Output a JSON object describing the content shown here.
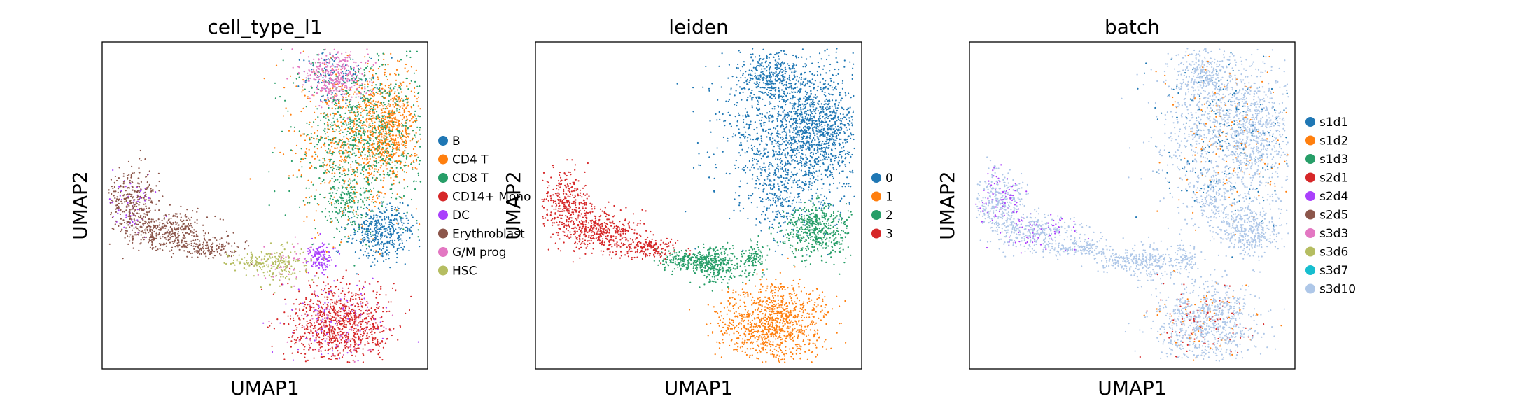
{
  "chart_data": [
    {
      "type": "scatter",
      "title": "cell_type_l1",
      "xlabel": "UMAP1",
      "ylabel": "UMAP2",
      "legend_placement": "right",
      "grid": false,
      "ticks": false,
      "series": [
        {
          "name": "B",
          "color": "#1f77b4"
        },
        {
          "name": "CD4 T",
          "color": "#ff7f0e"
        },
        {
          "name": "CD8 T",
          "color": "#279e68"
        },
        {
          "name": "CD14+ Mono",
          "color": "#d62728"
        },
        {
          "name": "DC",
          "color": "#aa40fc"
        },
        {
          "name": "Erythroblast",
          "color": "#8c564b"
        },
        {
          "name": "G/M prog",
          "color": "#e377c2"
        },
        {
          "name": "HSC",
          "color": "#b5bd61"
        }
      ]
    },
    {
      "type": "scatter",
      "title": "leiden",
      "xlabel": "UMAP1",
      "ylabel": "UMAP2",
      "legend_placement": "right",
      "grid": false,
      "ticks": false,
      "series": [
        {
          "name": "0",
          "color": "#1f77b4"
        },
        {
          "name": "1",
          "color": "#ff7f0e"
        },
        {
          "name": "2",
          "color": "#279e68"
        },
        {
          "name": "3",
          "color": "#d62728"
        }
      ]
    },
    {
      "type": "scatter",
      "title": "batch",
      "xlabel": "UMAP1",
      "ylabel": "UMAP2",
      "legend_placement": "right",
      "grid": false,
      "ticks": false,
      "series": [
        {
          "name": "s1d1",
          "color": "#1f77b4"
        },
        {
          "name": "s1d2",
          "color": "#ff7f0e"
        },
        {
          "name": "s1d3",
          "color": "#279e68"
        },
        {
          "name": "s2d1",
          "color": "#d62728"
        },
        {
          "name": "s2d4",
          "color": "#aa40fc"
        },
        {
          "name": "s2d5",
          "color": "#8c564b"
        },
        {
          "name": "s3d3",
          "color": "#e377c2"
        },
        {
          "name": "s3d6",
          "color": "#b5bd61"
        },
        {
          "name": "s3d7",
          "color": "#17becf"
        },
        {
          "name": "s3d10",
          "color": "#aec7e8"
        }
      ]
    }
  ]
}
